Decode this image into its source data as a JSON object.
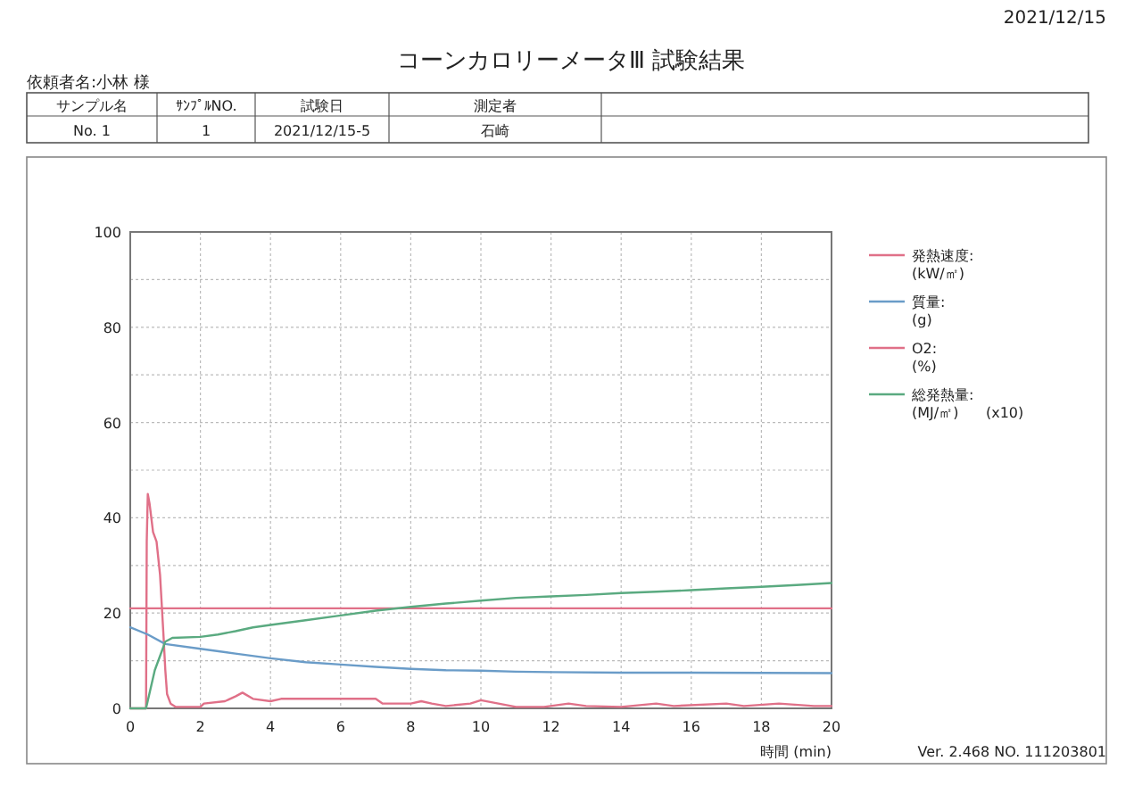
{
  "chart_data": {
    "type": "line",
    "title": "コーンカロリーメータⅢ 試験結果",
    "xlabel": "時間 (min)",
    "annotations": [
      "2021/12/15",
      "依頼者名:小林 様",
      "サンプル名",
      "ｻﾝﾌﾟﾙNO.",
      "試験日",
      "測定者",
      "No. 1",
      "1",
      "2021/12/15-5",
      "石崎",
      "Ver. 2.468 NO. 111203801"
    ],
    "xlim": [
      0,
      20
    ],
    "xticks": [
      0,
      2,
      4,
      6,
      8,
      10,
      12,
      14,
      16,
      18,
      20
    ],
    "ylim": [
      0,
      100
    ],
    "yticks": [
      0,
      {
        "value": 10,
        "label": null
      },
      20,
      {
        "value": 30,
        "label": null
      },
      40,
      {
        "value": 50,
        "label": null
      },
      60,
      {
        "value": 70,
        "label": null
      },
      80,
      {
        "value": 90,
        "label": null
      },
      100
    ],
    "grid": true,
    "legend": "right",
    "line_style": "solid",
    "series": [
      {
        "name": "発熱速度:\n(kW/㎡)",
        "color": "#e07088",
        "x": [
          0,
          0.45,
          0.47,
          0.5,
          0.55,
          0.65,
          0.75,
          0.85,
          0.95,
          1.0,
          1.05,
          1.15,
          1.3,
          2,
          2.1,
          2.7,
          3,
          3.2,
          3.5,
          4,
          4.3,
          7,
          7.2,
          8,
          8.3,
          8.6,
          9,
          9.7,
          10,
          10.5,
          11,
          11.8,
          12.5,
          13,
          14,
          15,
          15.5,
          17,
          17.5,
          18.5,
          19.5,
          20
        ],
        "values": [
          0,
          0,
          35,
          45,
          43,
          37,
          35,
          28,
          15,
          8,
          3,
          1,
          0.3,
          0.3,
          1,
          1.5,
          2.5,
          3.3,
          2,
          1.5,
          2,
          2,
          1,
          1,
          1.5,
          1,
          0.5,
          1,
          1.7,
          1,
          0.3,
          0.3,
          1,
          0.5,
          0.3,
          1,
          0.5,
          1,
          0.5,
          1,
          0.5,
          0.5
        ]
      },
      {
        "name": "質量:\n(g)",
        "color": "#6a9cc8",
        "x": [
          0,
          0.5,
          1,
          2,
          3,
          4,
          5,
          6,
          7,
          8,
          9,
          10,
          11,
          12,
          14,
          16,
          20
        ],
        "values": [
          17,
          15.5,
          13.5,
          12.5,
          11.5,
          10.5,
          9.7,
          9.2,
          8.7,
          8.3,
          8,
          7.9,
          7.7,
          7.6,
          7.5,
          7.5,
          7.4
        ]
      },
      {
        "name": "O2:\n(%)",
        "color": "#e07088",
        "x": [
          0,
          20
        ],
        "values": [
          21,
          21
        ]
      },
      {
        "name": "総発熱量:\n(MJ/㎡)      (x10)",
        "color": "#5aaa80",
        "x": [
          0,
          0.45,
          0.7,
          1,
          1.2,
          2,
          2.5,
          3,
          3.5,
          4,
          5,
          6,
          7,
          8,
          9,
          10,
          11,
          12,
          13,
          14,
          15,
          16,
          17,
          18,
          19,
          20
        ],
        "values": [
          0,
          0,
          8,
          14,
          14.8,
          15,
          15.5,
          16.2,
          17,
          17.5,
          18.5,
          19.5,
          20.5,
          21.3,
          22,
          22.6,
          23.2,
          23.5,
          23.8,
          24.2,
          24.5,
          24.8,
          25.2,
          25.5,
          25.9,
          26.3
        ]
      }
    ]
  }
}
